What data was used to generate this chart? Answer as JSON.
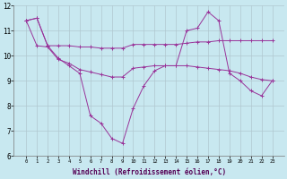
{
  "xlabel": "Windchill (Refroidissement éolien,°C)",
  "x": [
    0,
    1,
    2,
    3,
    4,
    5,
    6,
    7,
    8,
    9,
    10,
    11,
    12,
    13,
    14,
    15,
    16,
    17,
    18,
    19,
    20,
    21,
    22,
    23
  ],
  "line1": [
    11.4,
    11.5,
    10.4,
    9.9,
    9.6,
    9.3,
    7.6,
    7.3,
    6.7,
    6.5,
    7.9,
    8.8,
    9.4,
    9.6,
    9.6,
    11.0,
    11.1,
    11.75,
    11.4,
    9.3,
    9.0,
    8.6,
    8.4,
    9.0
  ],
  "line2": [
    11.4,
    11.5,
    10.4,
    10.4,
    10.4,
    10.35,
    10.35,
    10.3,
    10.3,
    10.3,
    10.45,
    10.45,
    10.45,
    10.45,
    10.45,
    10.5,
    10.55,
    10.55,
    10.6,
    10.6,
    10.6,
    10.6,
    10.6,
    10.6
  ],
  "line3": [
    11.4,
    10.4,
    10.35,
    9.85,
    9.7,
    9.45,
    9.35,
    9.25,
    9.15,
    9.15,
    9.5,
    9.55,
    9.6,
    9.6,
    9.6,
    9.6,
    9.55,
    9.5,
    9.45,
    9.4,
    9.3,
    9.15,
    9.05,
    9.0
  ],
  "line_color": "#993399",
  "bg_color": "#c8e8f0",
  "grid_color": "#b0c8d0",
  "ylim": [
    6,
    12
  ],
  "yticks": [
    6,
    7,
    8,
    9,
    10,
    11,
    12
  ],
  "xticks": [
    0,
    1,
    2,
    3,
    4,
    5,
    6,
    7,
    8,
    9,
    10,
    11,
    12,
    13,
    14,
    15,
    16,
    17,
    18,
    19,
    20,
    21,
    22,
    23
  ]
}
